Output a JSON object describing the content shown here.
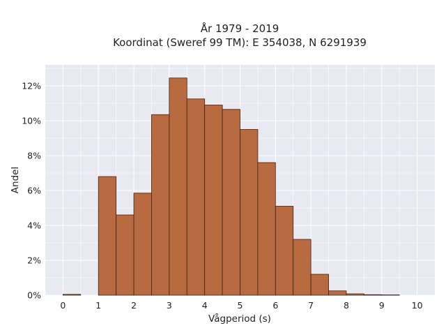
{
  "chart_data": {
    "type": "bar",
    "title_line1": "År 1979 - 2019",
    "title_line2": "Koordinat (Sweref 99 TM): E 354038, N 6291939",
    "xlabel": "Vågperiod (s)",
    "ylabel": "Andel",
    "bin_width": 0.5,
    "x": [
      0,
      0.5,
      1,
      1.5,
      2,
      2.5,
      3,
      3.5,
      4,
      4.5,
      5,
      5.5,
      6,
      6.5,
      7,
      7.5,
      8,
      8.5,
      9,
      9.5
    ],
    "values": [
      0.05,
      0,
      6.8,
      4.6,
      5.85,
      10.35,
      12.45,
      11.25,
      10.9,
      10.65,
      9.5,
      7.6,
      5.1,
      3.2,
      1.2,
      0.25,
      0.08,
      0.03,
      0.02,
      0
    ],
    "xlim": [
      -0.5,
      10.5
    ],
    "ylim": [
      0,
      13.2
    ],
    "xticks": [
      0,
      1,
      2,
      3,
      4,
      5,
      6,
      7,
      8,
      9,
      10
    ],
    "xtick_labels": [
      "0",
      "1",
      "2",
      "3",
      "4",
      "5",
      "6",
      "7",
      "8",
      "9",
      "10"
    ],
    "yticks": [
      0,
      2,
      4,
      6,
      8,
      10,
      12
    ],
    "ytick_labels": [
      "0%",
      "2%",
      "4%",
      "6%",
      "8%",
      "10%",
      "12%"
    ],
    "grid": true,
    "colors": {
      "bar": "#b86a40",
      "bar_edge": "#3a2418",
      "plot_bg": "#e9e9f1",
      "grid": "#ffffff"
    }
  }
}
